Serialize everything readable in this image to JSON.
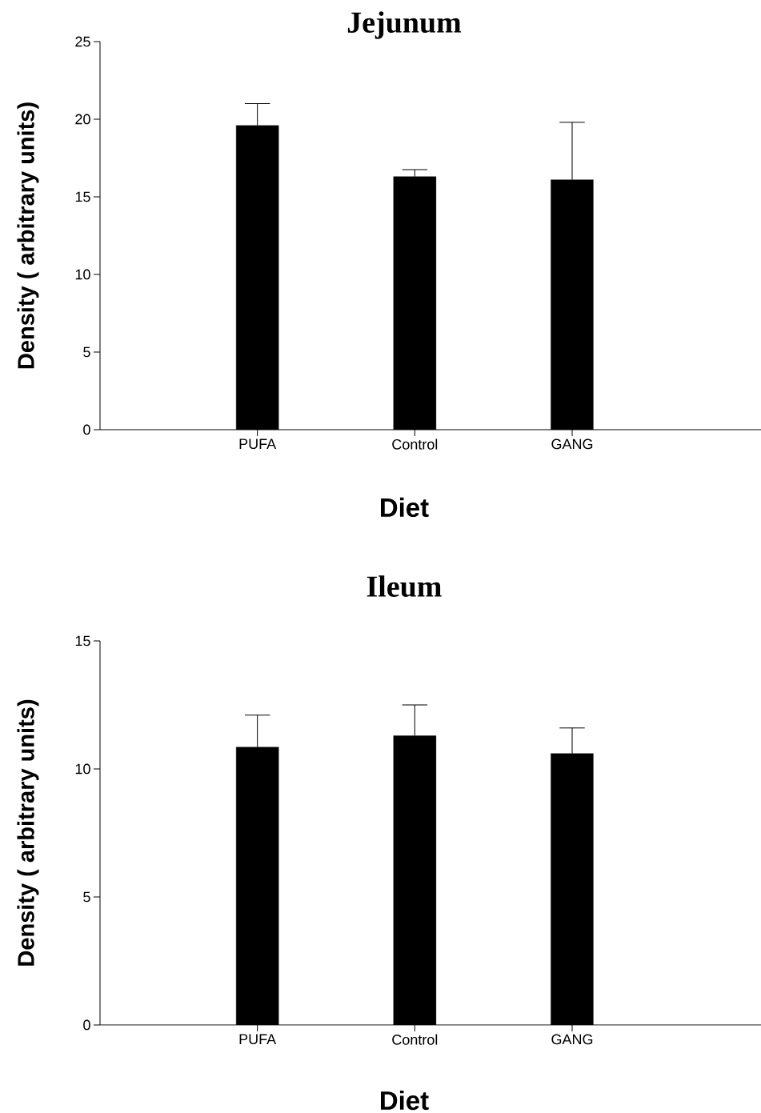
{
  "chart_data": [
    {
      "type": "bar",
      "title": "Jejunum",
      "xlabel": "Diet",
      "ylabel": "Density ( arbitrary units)",
      "categories": [
        "PUFA",
        "Control",
        "GANG"
      ],
      "values": [
        19.6,
        16.3,
        16.1
      ],
      "errors": [
        [
          19.6,
          21.0
        ],
        [
          16.3,
          16.75
        ],
        [
          16.1,
          19.8
        ]
      ],
      "color": "#000000",
      "ylim": [
        0,
        25
      ],
      "yticks": [
        0,
        5,
        10,
        15,
        20,
        25
      ]
    },
    {
      "type": "bar",
      "title": "Ileum",
      "xlabel": "Diet",
      "ylabel": "Density ( arbitrary units)",
      "categories": [
        "PUFA",
        "Control",
        "GANG"
      ],
      "values": [
        10.85,
        11.3,
        10.6
      ],
      "errors": [
        [
          10.85,
          12.1
        ],
        [
          11.3,
          12.5
        ],
        [
          10.6,
          11.6
        ]
      ],
      "color": "#000000",
      "ylim": [
        0,
        15
      ],
      "yticks": [
        0,
        5,
        10,
        15
      ]
    }
  ]
}
